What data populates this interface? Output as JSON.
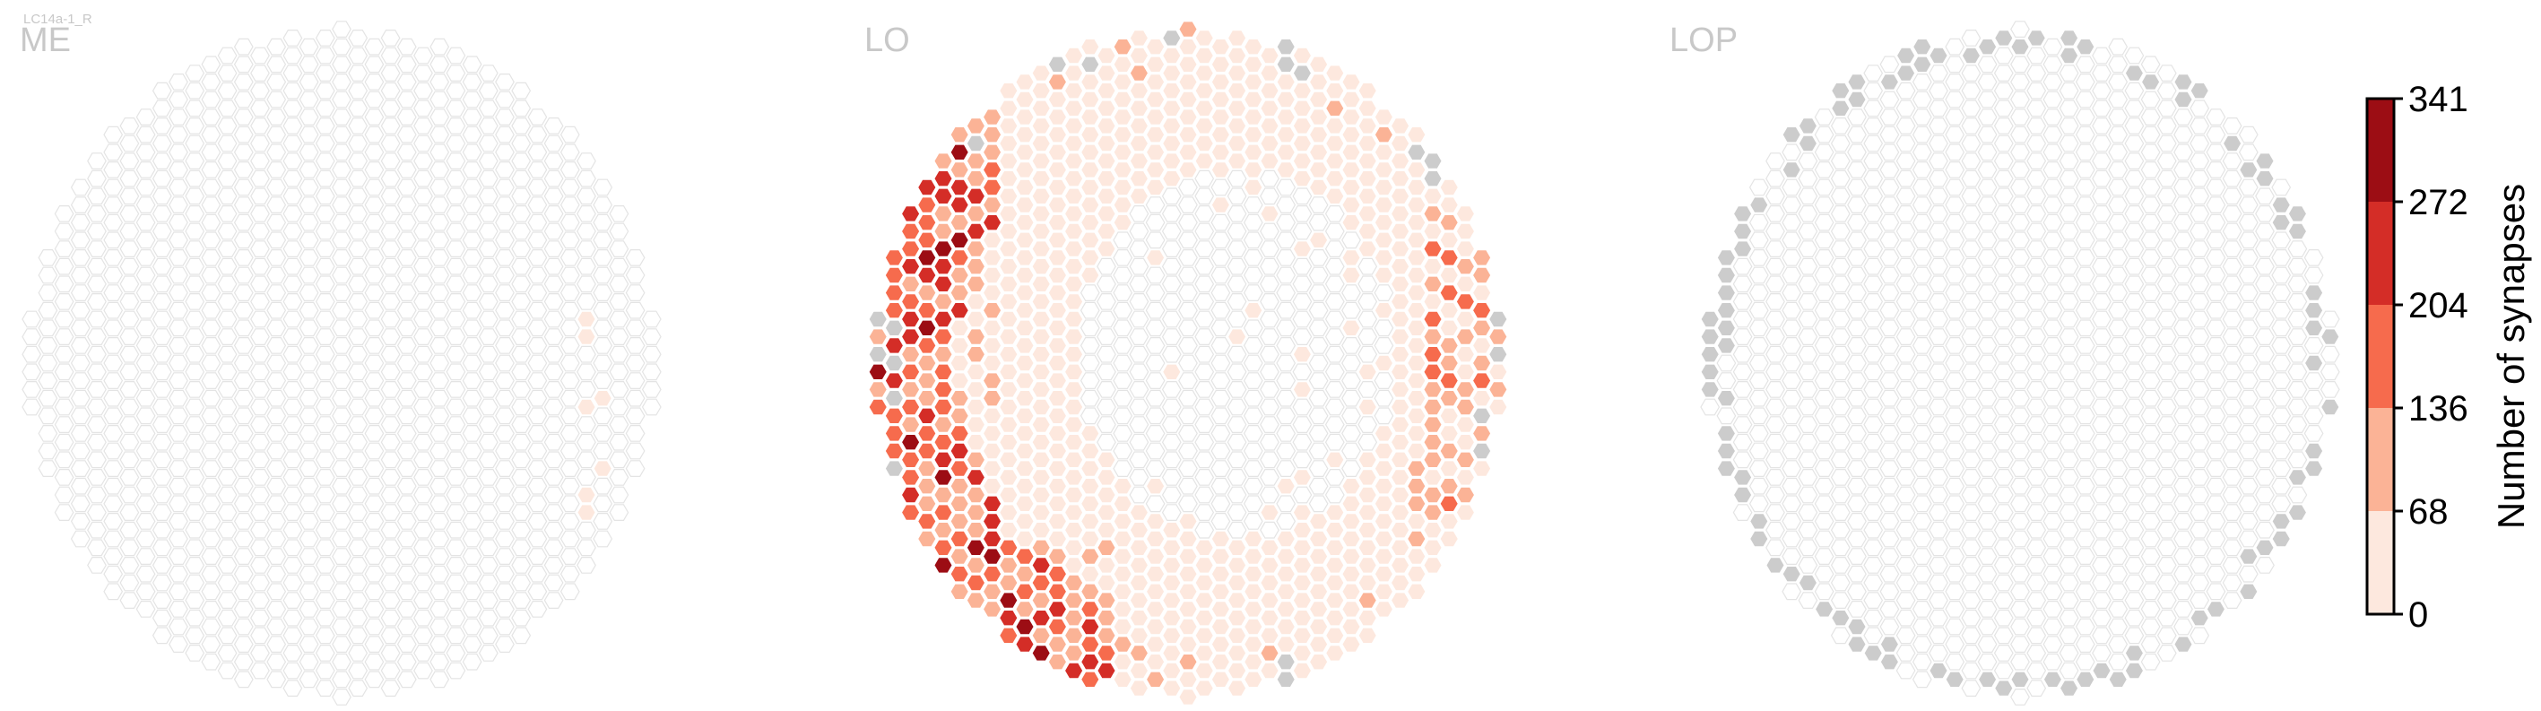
{
  "cell_type": "LC14a-1_R",
  "panels": [
    {
      "title": "ME"
    },
    {
      "title": "LO"
    },
    {
      "title": "LOP"
    }
  ],
  "colors": {
    "empty_fill": "#ffffff",
    "empty_stroke": "#e4e4e4",
    "missing_fill": "#cccccc",
    "bins": [
      "#fde8de",
      "#fbb396",
      "#f66b4d",
      "#d42d27",
      "#9c0d14"
    ]
  },
  "chart_data": {
    "type": "heatmap",
    "layout": "hexagonal column grid",
    "colorbar": {
      "label": "Number of synapses",
      "ticks": [
        "0",
        "68",
        "136",
        "204",
        "272",
        "341"
      ],
      "range": [
        0,
        341
      ],
      "bins": 5
    },
    "legend_placement": "right",
    "maps": [
      {
        "region": "ME",
        "note_values": "mostly 0; a few low-count columns on the right edge",
        "nonzero_columns": [
          {
            "col": 15,
            "row": -3,
            "bin": 0
          },
          {
            "col": 15,
            "row": -2,
            "bin": 0
          },
          {
            "col": 15,
            "row": 2,
            "bin": 0
          },
          {
            "col": 16,
            "row": 2,
            "bin": 0
          },
          {
            "col": 16,
            "row": 6,
            "bin": 0
          },
          {
            "col": 15,
            "row": 7,
            "bin": 0
          },
          {
            "col": 15,
            "row": 8,
            "bin": 0
          }
        ]
      },
      {
        "region": "LO",
        "note_values": "ring of low counts (0-68) with higher counts (68-341) concentrated at the left and bottom edges; center empty"
      },
      {
        "region": "LOP",
        "note_values": "all 0; outermost columns shown grey"
      }
    ]
  }
}
